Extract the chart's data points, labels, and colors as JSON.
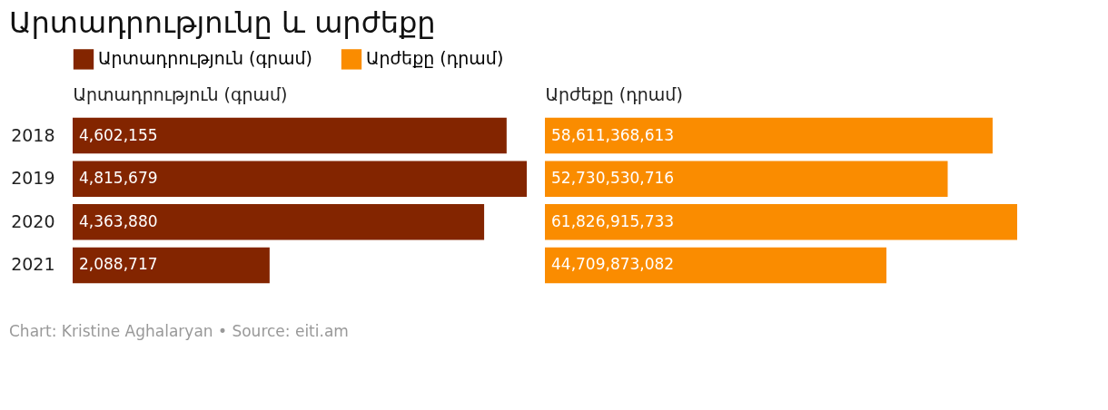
{
  "chart_data": [
    {
      "type": "bar",
      "orientation": "horizontal",
      "title": "Արտադրությունը և արժեքը",
      "xlabel": "Արտադրություն (գրամ)",
      "categories": [
        "2018",
        "2019",
        "2020",
        "2021"
      ],
      "series": [
        {
          "name": "Արտադրություն (գրամ)",
          "color": "#832500",
          "values": [
            4602155,
            4815679,
            4363880,
            2088717
          ],
          "value_labels": [
            "4,602,155",
            "4,815,679",
            "4,363,880",
            "2,088,717"
          ]
        }
      ],
      "legend": "top",
      "tick_labels": "y",
      "grid": false,
      "annotations": [
        "Chart: Kristine Aghalaryan • Source: eiti.am"
      ]
    },
    {
      "type": "bar",
      "orientation": "horizontal",
      "xlabel": "Արժեքը (դրամ)",
      "categories": [
        "2018",
        "2019",
        "2020",
        "2021"
      ],
      "series": [
        {
          "name": "Արժեքը (դրամ)",
          "color": "#fa8c00",
          "values": [
            58611368613,
            52730530716,
            61826915733,
            44709873082
          ],
          "value_labels": [
            "58,611,368,613",
            "52,730,530,716",
            "61,826,915,733",
            "44,709,873,082"
          ]
        }
      ],
      "legend": "top",
      "tick_labels": false,
      "grid": false
    }
  ]
}
